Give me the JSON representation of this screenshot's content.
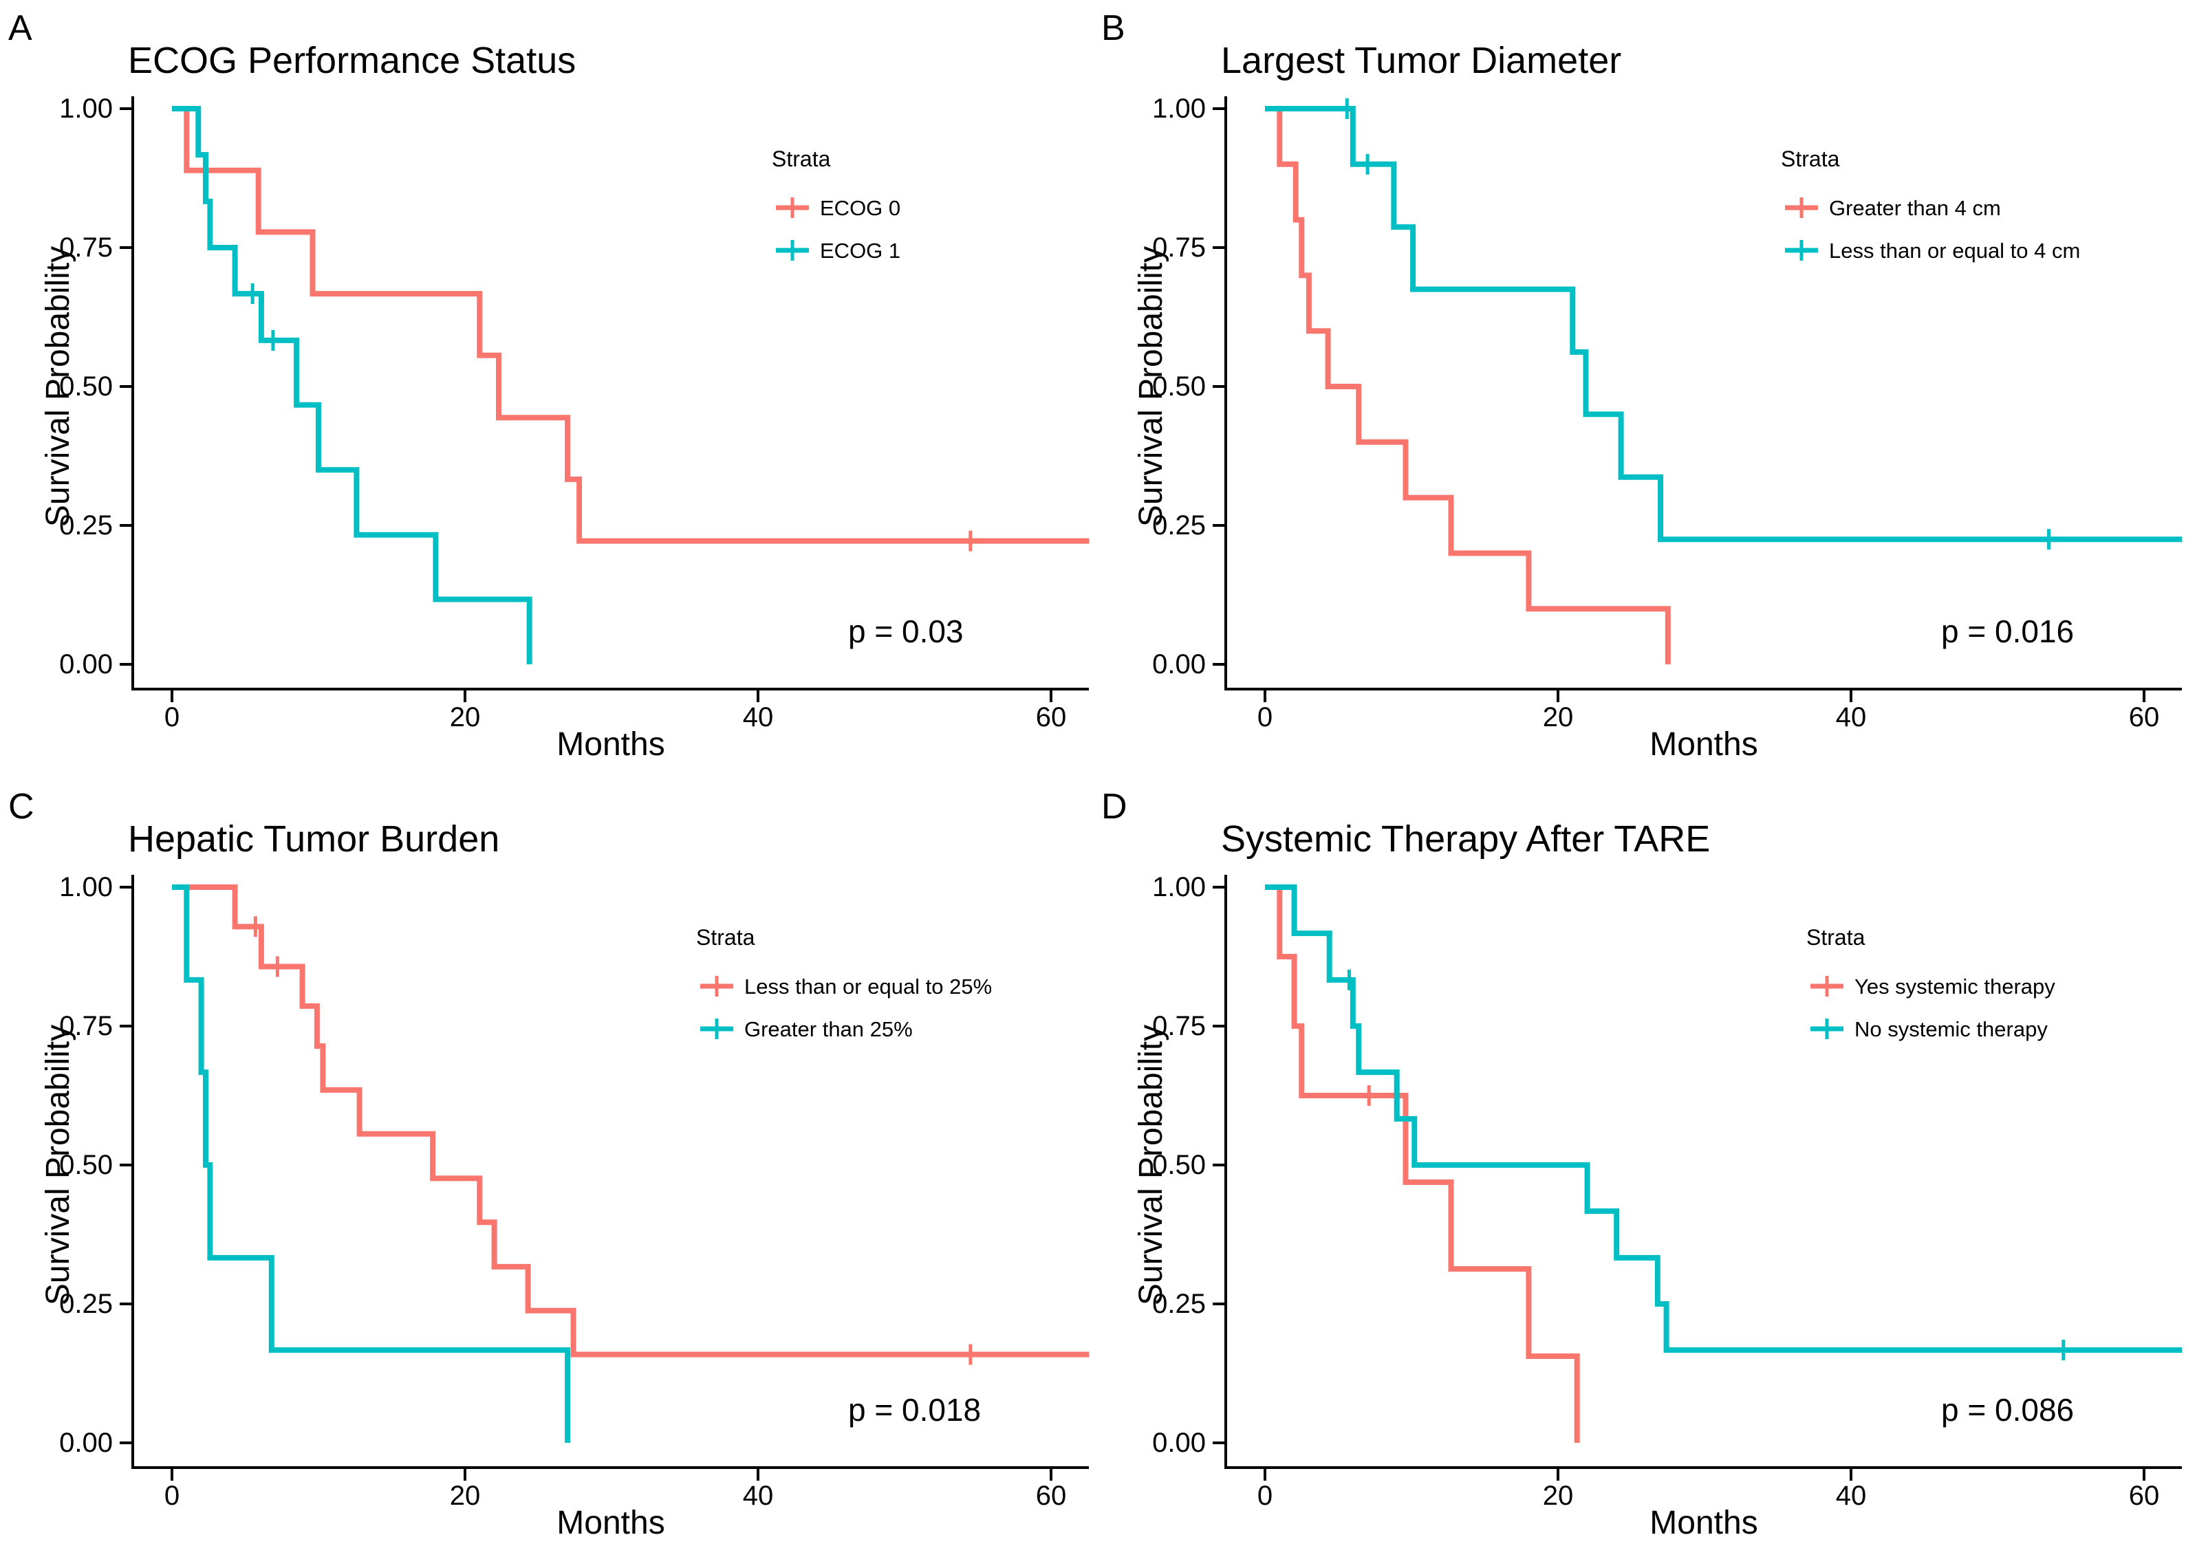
{
  "figure": {
    "background": "#ffffff",
    "axis_color": "#000000",
    "strata_colors": {
      "red": "#F8766D",
      "teal": "#00BFC4"
    }
  },
  "chart_data": [
    {
      "type": "line",
      "subtype": "kaplan-meier-step",
      "panel_letter": "A",
      "title": "ECOG Performance Status",
      "xlabel": "Months",
      "ylabel": "Survival Probability",
      "p_value_text": "p = 0.03",
      "legend_title": "Strata",
      "legend_position": "inside-right",
      "xlim": [
        0,
        62.6
      ],
      "ylim": [
        0,
        1
      ],
      "x_ticks": [
        0,
        20,
        40,
        60
      ],
      "x_tick_labels": [
        "0",
        "20",
        "40",
        "60"
      ],
      "y_ticks": [
        0,
        0.25,
        0.5,
        0.75,
        1
      ],
      "y_tick_labels": [
        "0.00",
        "0.25",
        "0.50",
        "0.75",
        "1.00"
      ],
      "grid": false,
      "legend_key_x": 1128,
      "series": [
        {
          "name": "ECOG 0",
          "color": "#F8766D",
          "steps": [
            [
              0,
              1
            ],
            [
              1,
              0.889
            ],
            [
              5.9,
              0.778
            ],
            [
              9.6,
              0.667
            ],
            [
              21,
              0.556
            ],
            [
              22.3,
              0.444
            ],
            [
              27,
              0.333
            ],
            [
              27.8,
              0.222
            ]
          ],
          "censor_marks": [
            [
              54.5,
              0.222
            ]
          ]
        },
        {
          "name": "ECOG 1",
          "color": "#00BFC4",
          "steps": [
            [
              0,
              1
            ],
            [
              1.8,
              0.917
            ],
            [
              2.3,
              0.833
            ],
            [
              2.6,
              0.75
            ],
            [
              4.3,
              0.667
            ],
            [
              6.1,
              0.583
            ],
            [
              8.5,
              0.467
            ],
            [
              10,
              0.35
            ],
            [
              12.6,
              0.233
            ],
            [
              18,
              0.117
            ],
            [
              24.4,
              0
            ]
          ],
          "censor_marks": [
            [
              5.5,
              0.667
            ],
            [
              6.9,
              0.583
            ]
          ]
        }
      ]
    },
    {
      "type": "line",
      "subtype": "kaplan-meier-step",
      "panel_letter": "B",
      "title": "Largest Tumor Diameter",
      "xlabel": "Months",
      "ylabel": "Survival Probability",
      "p_value_text": "p = 0.016",
      "legend_title": "Strata",
      "legend_position": "inside-right",
      "xlim": [
        0,
        62.6
      ],
      "ylim": [
        0,
        1
      ],
      "x_ticks": [
        0,
        20,
        40,
        60
      ],
      "x_tick_labels": [
        "0",
        "20",
        "40",
        "60"
      ],
      "y_ticks": [
        0,
        0.25,
        0.5,
        0.75,
        1
      ],
      "y_tick_labels": [
        "0.00",
        "0.25",
        "0.50",
        "0.75",
        "1.00"
      ],
      "grid": false,
      "legend_key_x": 1006,
      "series": [
        {
          "name": "Greater than 4 cm",
          "color": "#F8766D",
          "steps": [
            [
              0,
              1
            ],
            [
              1,
              0.9
            ],
            [
              2.1,
              0.8
            ],
            [
              2.5,
              0.7
            ],
            [
              3,
              0.6
            ],
            [
              4.3,
              0.5
            ],
            [
              6.4,
              0.4
            ],
            [
              9.6,
              0.3
            ],
            [
              12.7,
              0.2
            ],
            [
              18,
              0.1
            ],
            [
              27.5,
              0
            ]
          ],
          "censor_marks": []
        },
        {
          "name": "Less than or equal to 4 cm",
          "color": "#00BFC4",
          "steps": [
            [
              0,
              1
            ],
            [
              6,
              0.9
            ],
            [
              8.8,
              0.787
            ],
            [
              10.1,
              0.675
            ],
            [
              21,
              0.562
            ],
            [
              21.9,
              0.45
            ],
            [
              24.3,
              0.337
            ],
            [
              27,
              0.225
            ]
          ],
          "censor_marks": [
            [
              5.6,
              1
            ],
            [
              7,
              0.9
            ],
            [
              53.5,
              0.225
            ]
          ]
        }
      ]
    },
    {
      "type": "line",
      "subtype": "kaplan-meier-step",
      "panel_letter": "C",
      "title": "Hepatic Tumor Burden",
      "xlabel": "Months",
      "ylabel": "Survival Probability",
      "p_value_text": "p = 0.018",
      "legend_title": "Strata",
      "legend_position": "inside-right",
      "xlim": [
        0,
        62.6
      ],
      "ylim": [
        0,
        1
      ],
      "x_ticks": [
        0,
        20,
        40,
        60
      ],
      "x_tick_labels": [
        "0",
        "20",
        "40",
        "60"
      ],
      "y_ticks": [
        0,
        0.25,
        0.5,
        0.75,
        1
      ],
      "y_tick_labels": [
        "0.00",
        "0.25",
        "0.50",
        "0.75",
        "1.00"
      ],
      "grid": false,
      "legend_key_x": 1018,
      "series": [
        {
          "name": "Less than or equal to 25%",
          "color": "#F8766D",
          "steps": [
            [
              0,
              1
            ],
            [
              4.3,
              0.929
            ],
            [
              6.1,
              0.857
            ],
            [
              8.9,
              0.786
            ],
            [
              9.9,
              0.714
            ],
            [
              10.3,
              0.635
            ],
            [
              12.8,
              0.556
            ],
            [
              17.8,
              0.476
            ],
            [
              21,
              0.397
            ],
            [
              22,
              0.317
            ],
            [
              24.3,
              0.238
            ],
            [
              27.4,
              0.159
            ]
          ],
          "censor_marks": [
            [
              5.7,
              0.929
            ],
            [
              7.2,
              0.857
            ],
            [
              54.5,
              0.159
            ]
          ]
        },
        {
          "name": "Greater than 25%",
          "color": "#00BFC4",
          "steps": [
            [
              0,
              1
            ],
            [
              1,
              0.833
            ],
            [
              2,
              0.667
            ],
            [
              2.3,
              0.5
            ],
            [
              2.6,
              0.333
            ],
            [
              6.8,
              0.167
            ],
            [
              27,
              0
            ]
          ],
          "censor_marks": []
        }
      ]
    },
    {
      "type": "line",
      "subtype": "kaplan-meier-step",
      "panel_letter": "D",
      "title": "Systemic Therapy After TARE",
      "xlabel": "Months",
      "ylabel": "Survival Probability",
      "p_value_text": "p = 0.086",
      "legend_title": "Strata",
      "legend_position": "inside-right",
      "xlim": [
        0,
        62.6
      ],
      "ylim": [
        0,
        1
      ],
      "x_ticks": [
        0,
        20,
        40,
        60
      ],
      "x_tick_labels": [
        "0",
        "20",
        "40",
        "60"
      ],
      "y_ticks": [
        0,
        0.25,
        0.5,
        0.75,
        1
      ],
      "y_tick_labels": [
        "0.00",
        "0.25",
        "0.50",
        "0.75",
        "1.00"
      ],
      "grid": false,
      "legend_key_x": 1043,
      "series": [
        {
          "name": "Yes systemic therapy",
          "color": "#F8766D",
          "steps": [
            [
              0,
              1
            ],
            [
              1,
              0.875
            ],
            [
              2,
              0.75
            ],
            [
              2.5,
              0.625
            ],
            [
              9.6,
              0.469
            ],
            [
              12.7,
              0.313
            ],
            [
              18,
              0.156
            ],
            [
              21.3,
              0
            ]
          ],
          "censor_marks": [
            [
              7.1,
              0.625
            ]
          ]
        },
        {
          "name": "No systemic therapy",
          "color": "#00BFC4",
          "steps": [
            [
              0,
              1
            ],
            [
              2,
              0.917
            ],
            [
              4.4,
              0.833
            ],
            [
              6,
              0.75
            ],
            [
              6.4,
              0.667
            ],
            [
              9,
              0.583
            ],
            [
              10.2,
              0.5
            ],
            [
              22,
              0.417
            ],
            [
              24,
              0.333
            ],
            [
              26.8,
              0.25
            ],
            [
              27.4,
              0.167
            ]
          ],
          "censor_marks": [
            [
              5.75,
              0.833
            ],
            [
              54.5,
              0.167
            ]
          ]
        }
      ]
    }
  ]
}
